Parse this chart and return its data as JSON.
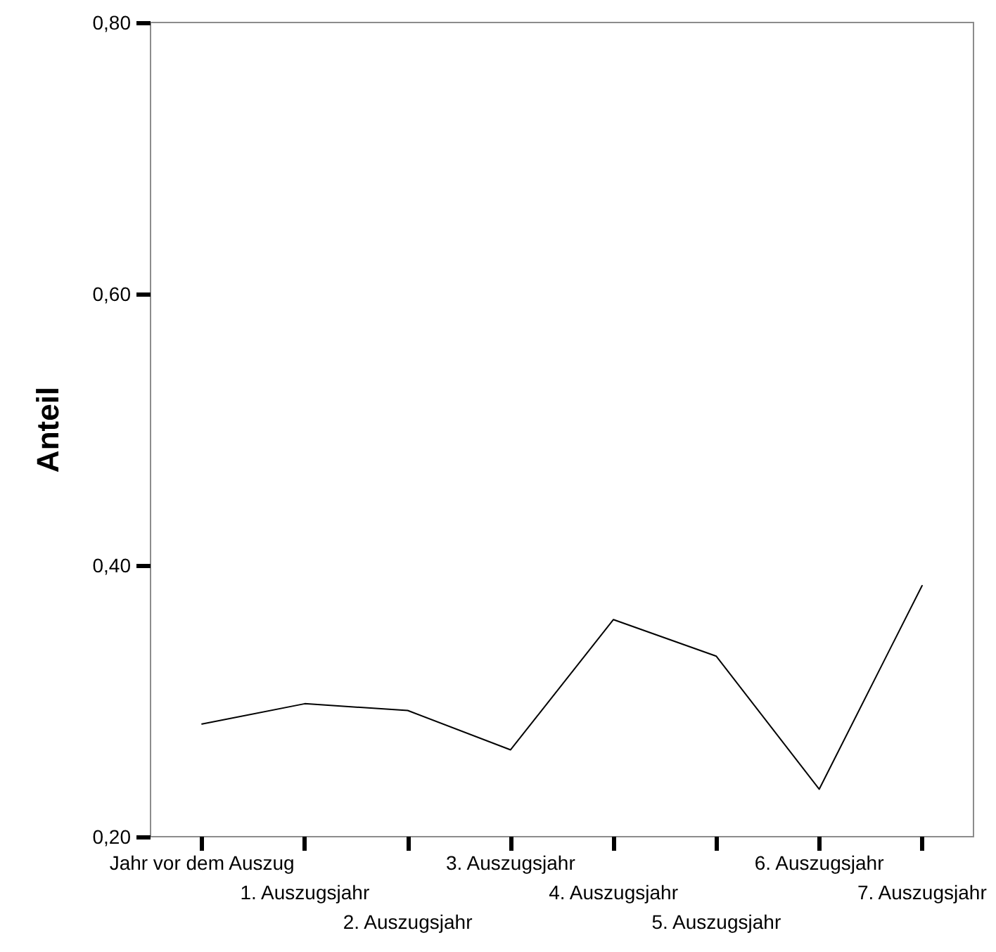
{
  "chart_data": {
    "type": "line",
    "ylabel": "Anteil",
    "categories": [
      "Jahr vor dem Auszug",
      "1. Auszugsjahr",
      "2. Auszugsjahr",
      "3. Auszugsjahr",
      "4. Auszugsjahr",
      "5. Auszugsjahr",
      "6. Auszugsjahr",
      "7. Auszugsjahr"
    ],
    "series": [
      {
        "color": "#000000",
        "values": [
          0.283,
          0.298,
          0.293,
          0.264,
          0.36,
          0.333,
          0.235,
          0.385
        ]
      }
    ],
    "ylim": [
      0.2,
      0.8
    ],
    "yticks": [
      {
        "value": 0.2,
        "label": "0,20"
      },
      {
        "value": 0.4,
        "label": "0,40"
      },
      {
        "value": 0.6,
        "label": "0,60"
      },
      {
        "value": 0.8,
        "label": "0,80"
      }
    ],
    "grid": false,
    "marker": "none",
    "line_style": "solid"
  }
}
